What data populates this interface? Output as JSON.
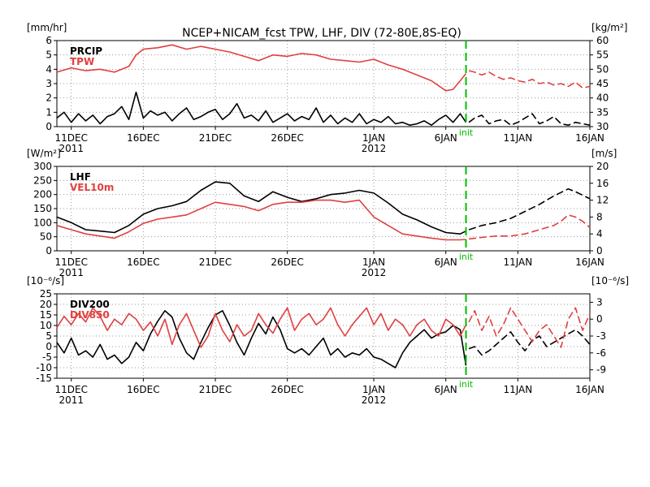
{
  "title": "NCEP+NICAM_fcst TPW, LHF, DIV (72-80E,8S-EQ)",
  "colors": {
    "black": "#000000",
    "red": "#e04040",
    "green": "#00c000",
    "grid": "#9a9a9a"
  },
  "init_label": "init",
  "init_x": 28.4,
  "x_axis": {
    "range": [
      0,
      37
    ],
    "tick_values": [
      1,
      6,
      11,
      16,
      22,
      27,
      32,
      37
    ],
    "tick_labels": [
      "11DEC",
      "16DEC",
      "21DEC",
      "26DEC",
      "1JAN",
      "6JAN",
      "11JAN",
      "16JAN"
    ],
    "year_labels": [
      {
        "x": 1,
        "text": "2011"
      },
      {
        "x": 22,
        "text": "2012"
      }
    ]
  },
  "chart_data": [
    {
      "type": "line",
      "left_unit": "[mm/hr]",
      "right_unit": "[kg/m²]",
      "left": {
        "ylim": [
          0,
          6
        ],
        "ticks": [
          0,
          1,
          2,
          3,
          4,
          5,
          6
        ]
      },
      "right": {
        "ylim": [
          30,
          60
        ],
        "ticks": [
          30,
          35,
          40,
          45,
          50,
          55,
          60
        ]
      },
      "series": [
        {
          "name": "PRCIP",
          "axis": "left",
          "color": "#000000",
          "x": [
            0,
            0.5,
            1,
            1.5,
            2,
            2.5,
            3,
            3.5,
            4,
            4.5,
            5,
            5.5,
            6,
            6.5,
            7,
            7.5,
            8,
            8.5,
            9,
            9.5,
            10,
            10.5,
            11,
            11.5,
            12,
            12.5,
            13,
            13.5,
            14,
            14.5,
            15,
            15.5,
            16,
            16.5,
            17,
            17.5,
            18,
            18.5,
            19,
            19.5,
            20,
            20.5,
            21,
            21.5,
            22,
            22.5,
            23,
            23.5,
            24,
            24.5,
            25,
            25.5,
            26,
            26.5,
            27,
            27.5,
            28,
            28.4
          ],
          "y": [
            0.6,
            1.0,
            0.3,
            0.9,
            0.4,
            0.8,
            0.2,
            0.7,
            0.9,
            1.4,
            0.5,
            2.4,
            0.6,
            1.1,
            0.8,
            1.0,
            0.4,
            0.9,
            1.3,
            0.5,
            0.7,
            1.0,
            1.2,
            0.5,
            0.9,
            1.6,
            0.6,
            0.8,
            0.4,
            1.1,
            0.3,
            0.6,
            0.9,
            0.4,
            0.7,
            0.5,
            1.3,
            0.3,
            0.8,
            0.2,
            0.6,
            0.3,
            0.9,
            0.2,
            0.5,
            0.3,
            0.7,
            0.2,
            0.3,
            0.1,
            0.2,
            0.4,
            0.1,
            0.5,
            0.8,
            0.3,
            0.9,
            0.3
          ]
        },
        {
          "name": "PRCIP fcst",
          "axis": "left",
          "color": "#000000",
          "dashed": true,
          "x": [
            28.6,
            29,
            29.5,
            30,
            30.5,
            31,
            31.5,
            32,
            32.5,
            33,
            33.5,
            34,
            34.5,
            35,
            35.5,
            36,
            36.5,
            37
          ],
          "y": [
            0.3,
            0.6,
            0.8,
            0.2,
            0.4,
            0.5,
            0.1,
            0.3,
            0.6,
            0.9,
            0.2,
            0.4,
            0.7,
            0.2,
            0.1,
            0.3,
            0.2,
            0.1
          ]
        },
        {
          "name": "TPW",
          "axis": "right",
          "color": "#e04040",
          "x": [
            0,
            1,
            2,
            3,
            4,
            5,
            5.5,
            6,
            7,
            8,
            9,
            10,
            11,
            12,
            13,
            14,
            15,
            16,
            17,
            18,
            19,
            20,
            21,
            22,
            23,
            24,
            25,
            26,
            27,
            27.5,
            28,
            28.4
          ],
          "y": [
            49.0,
            50.5,
            49.5,
            50.0,
            49.0,
            51.0,
            55.0,
            57.0,
            57.5,
            58.5,
            57.0,
            58.0,
            57.0,
            56.0,
            54.5,
            53.0,
            55.0,
            54.5,
            55.5,
            55.0,
            53.5,
            53.0,
            52.5,
            53.5,
            51.5,
            50.0,
            48.0,
            46.0,
            42.5,
            43.0,
            46.0,
            48.5
          ]
        },
        {
          "name": "TPW fcst",
          "axis": "right",
          "color": "#e04040",
          "dashed": true,
          "x": [
            28.6,
            29,
            29.5,
            30,
            30.5,
            31,
            31.5,
            32,
            32.5,
            33,
            33.5,
            34,
            34.5,
            35,
            35.5,
            36,
            36.5,
            37
          ],
          "y": [
            49.5,
            49.0,
            48.0,
            49.0,
            47.5,
            46.5,
            47.0,
            46.0,
            45.5,
            46.5,
            45.0,
            45.5,
            44.5,
            45.0,
            44.0,
            45.5,
            43.5,
            44.0
          ]
        }
      ]
    },
    {
      "type": "line",
      "left_unit": "[W/m²]",
      "right_unit": "[m/s]",
      "left": {
        "ylim": [
          0,
          300
        ],
        "ticks": [
          0,
          50,
          100,
          150,
          200,
          250,
          300
        ]
      },
      "right": {
        "ylim": [
          0,
          20
        ],
        "ticks": [
          0,
          4,
          8,
          12,
          16,
          20
        ]
      },
      "series": [
        {
          "name": "LHF",
          "axis": "left",
          "color": "#000000",
          "x": [
            0,
            1,
            2,
            3,
            4,
            5,
            6,
            7,
            8,
            9,
            10,
            11,
            12,
            13,
            14,
            15,
            16,
            17,
            18,
            19,
            20,
            21,
            22,
            23,
            24,
            25,
            26,
            27,
            28,
            28.4
          ],
          "y": [
            120,
            100,
            75,
            70,
            65,
            90,
            130,
            150,
            160,
            175,
            215,
            245,
            240,
            195,
            175,
            210,
            190,
            175,
            185,
            200,
            205,
            215,
            205,
            170,
            130,
            110,
            85,
            65,
            60,
            70
          ]
        },
        {
          "name": "LHF fcst",
          "axis": "left",
          "color": "#000000",
          "dashed": true,
          "x": [
            28.6,
            29.5,
            30.5,
            31.5,
            32.5,
            33.5,
            34.5,
            35.5,
            36,
            37
          ],
          "y": [
            75,
            90,
            100,
            115,
            140,
            165,
            195,
            220,
            210,
            185
          ]
        },
        {
          "name": "VEL10m",
          "axis": "right",
          "color": "#e04040",
          "x": [
            0,
            1,
            2,
            3,
            4,
            5,
            6,
            7,
            8,
            9,
            10,
            11,
            12,
            13,
            14,
            15,
            16,
            17,
            18,
            19,
            20,
            21,
            22,
            23,
            24,
            25,
            26,
            27,
            28,
            28.4
          ],
          "y": [
            6,
            5,
            4,
            3.5,
            3,
            4.5,
            6.5,
            7.5,
            8,
            8.5,
            10,
            11.5,
            11,
            10.5,
            9.5,
            11,
            11.5,
            11.5,
            12,
            12,
            11.5,
            12,
            8,
            6,
            4,
            3.5,
            3,
            2.6,
            2.6,
            2.7
          ]
        },
        {
          "name": "VEL10m fcst",
          "axis": "right",
          "color": "#e04040",
          "dashed": true,
          "x": [
            28.6,
            29.5,
            30.5,
            31.5,
            32.5,
            33.5,
            34.5,
            35,
            35.5,
            36,
            36.5,
            37
          ],
          "y": [
            2.8,
            3.2,
            3.5,
            3.5,
            4,
            5,
            6,
            7,
            8.5,
            8,
            7,
            5.5
          ]
        }
      ]
    },
    {
      "type": "line",
      "left_unit": "[10⁻⁶/s]",
      "right_unit": "[10⁻⁶/s]",
      "left": {
        "ylim": [
          -15,
          25
        ],
        "ticks": [
          -15,
          -10,
          -5,
          0,
          5,
          10,
          15,
          20,
          25
        ]
      },
      "right": {
        "ylim": [
          -10.5,
          4.5
        ],
        "ticks": [
          -9,
          -6,
          -3,
          0,
          3
        ]
      },
      "series": [
        {
          "name": "DIV200",
          "axis": "left",
          "color": "#000000",
          "x": [
            0,
            0.5,
            1,
            1.5,
            2,
            2.5,
            3,
            3.5,
            4,
            4.5,
            5,
            5.5,
            6,
            6.5,
            7,
            7.5,
            8,
            8.5,
            9,
            9.5,
            10,
            10.5,
            11,
            11.5,
            12,
            12.5,
            13,
            13.5,
            14,
            14.5,
            15,
            15.5,
            16,
            16.5,
            17,
            17.5,
            18,
            18.5,
            19,
            19.5,
            20,
            20.5,
            21,
            21.5,
            22,
            22.5,
            23,
            23.5,
            24,
            24.5,
            25,
            25.5,
            26,
            26.5,
            27,
            27.5,
            28,
            28.4
          ],
          "y": [
            2,
            -3,
            4,
            -4,
            -2,
            -5,
            1,
            -6,
            -4,
            -8,
            -5,
            2,
            -2,
            6,
            12,
            17,
            14,
            4,
            -3,
            -6,
            2,
            9,
            15,
            17,
            10,
            2,
            -4,
            4,
            11,
            6,
            14,
            8,
            -1,
            -3,
            -1,
            -4,
            0,
            4,
            -4,
            -1,
            -5,
            -3,
            -4,
            -1,
            -5,
            -6,
            -8,
            -10,
            -3,
            2,
            5,
            8,
            4,
            6,
            7,
            10,
            8,
            -9
          ]
        },
        {
          "name": "DIV200 fcst",
          "axis": "left",
          "color": "#000000",
          "dashed": true,
          "x": [
            28.6,
            29,
            29.5,
            30,
            30.5,
            31,
            31.5,
            32,
            32.5,
            33,
            33.5,
            34,
            34.5,
            35,
            35.5,
            36,
            36.5,
            37
          ],
          "y": [
            -1,
            0,
            -4,
            -2,
            1,
            4,
            7,
            2,
            -2,
            3,
            5,
            0,
            2,
            4,
            6,
            8,
            5,
            1
          ]
        },
        {
          "name": "DIV850",
          "axis": "right",
          "color": "#e04040",
          "x": [
            0,
            0.5,
            1,
            1.5,
            2,
            2.5,
            3,
            3.5,
            4,
            4.5,
            5,
            5.5,
            6,
            6.5,
            7,
            7.5,
            8,
            8.5,
            9,
            9.5,
            10,
            10.5,
            11,
            11.5,
            12,
            12.5,
            13,
            13.5,
            14,
            14.5,
            15,
            15.5,
            16,
            16.5,
            17,
            17.5,
            18,
            18.5,
            19,
            19.5,
            20,
            20.5,
            21,
            21.5,
            22,
            22.5,
            23,
            23.5,
            24,
            24.5,
            25,
            25.5,
            26,
            26.5,
            27,
            27.5,
            28,
            28.4
          ],
          "y": [
            -1.5,
            0.5,
            -1,
            1,
            -0.5,
            2,
            0.5,
            -2,
            0,
            -1,
            1,
            0,
            -2,
            -0.5,
            -3,
            0,
            -4.5,
            -1,
            1,
            -2,
            -5,
            -3,
            1,
            -2,
            -4,
            -1,
            -3,
            -2,
            1,
            -1,
            -2.5,
            0,
            2,
            -2,
            0,
            1,
            -1,
            0,
            2,
            -1,
            -3,
            -1,
            0.5,
            2,
            -1,
            1,
            -2,
            0,
            -1,
            -3,
            -1,
            0,
            -2,
            -3,
            0,
            -1,
            -3,
            -1
          ]
        },
        {
          "name": "DIV850 fcst",
          "axis": "right",
          "color": "#e04040",
          "dashed": true,
          "x": [
            28.6,
            29,
            29.5,
            30,
            30.5,
            31,
            31.5,
            32,
            32.5,
            33,
            33.5,
            34,
            34.5,
            35,
            35.5,
            36,
            36.5,
            37
          ],
          "y": [
            -0.5,
            1.5,
            -2,
            0.5,
            -3,
            -1,
            2,
            0,
            -2,
            -4,
            -2,
            -1,
            -3,
            -5,
            0,
            2,
            -2,
            1
          ]
        }
      ]
    }
  ]
}
